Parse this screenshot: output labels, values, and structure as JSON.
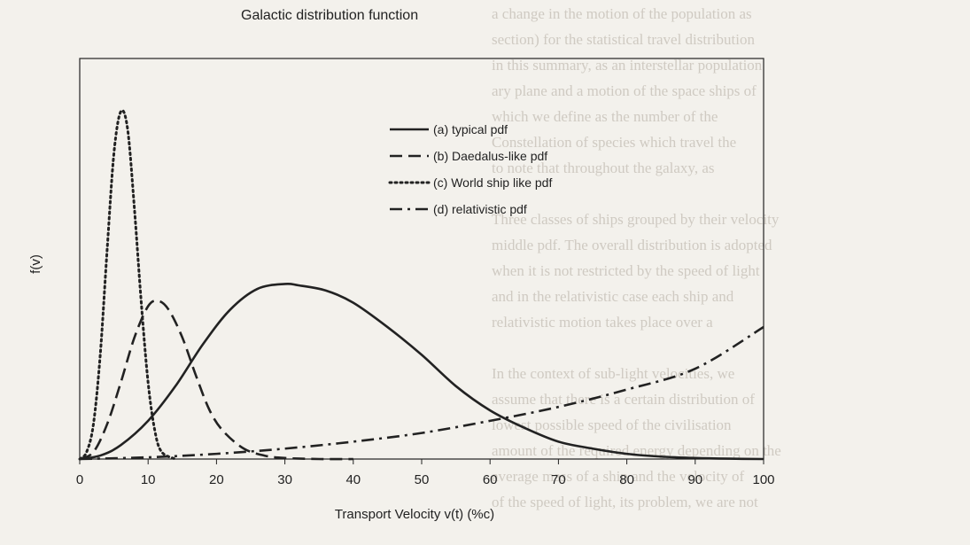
{
  "chart_data": {
    "type": "line",
    "title": "Galactic distribution function",
    "xlabel": "Transport Velocity v(t) (%c)",
    "ylabel": "f(v)",
    "xlim": [
      0,
      100
    ],
    "ylim": [
      0,
      1.0
    ],
    "x_ticks": [
      "0",
      "10",
      "20",
      "30",
      "40",
      "50",
      "60",
      "70",
      "80",
      "90",
      "100"
    ],
    "grid": false,
    "legend_position": "top-center",
    "series": [
      {
        "name": "(a) typical pdf",
        "style": "solid",
        "x": [
          0,
          3,
          6,
          10,
          14,
          18,
          22,
          26,
          30,
          32,
          36,
          40,
          45,
          50,
          55,
          60,
          65,
          70,
          75,
          80,
          85,
          90,
          95,
          100
        ],
        "y": [
          0,
          0.01,
          0.04,
          0.11,
          0.21,
          0.33,
          0.43,
          0.49,
          0.504,
          0.5,
          0.485,
          0.45,
          0.38,
          0.3,
          0.21,
          0.14,
          0.09,
          0.05,
          0.03,
          0.015,
          0.007,
          0.003,
          0.001,
          0
        ]
      },
      {
        "name": "(b) Daedalus-like pdf",
        "style": "dashed",
        "x": [
          0,
          2,
          4,
          6,
          8,
          10,
          11.5,
          13,
          15,
          17,
          19,
          21,
          24,
          27,
          30,
          35,
          40
        ],
        "y": [
          0,
          0.02,
          0.1,
          0.22,
          0.35,
          0.44,
          0.455,
          0.43,
          0.35,
          0.24,
          0.14,
          0.08,
          0.03,
          0.01,
          0.003,
          0,
          0
        ]
      },
      {
        "name": "(c) World ship like pdf",
        "style": "dotted",
        "x": [
          0,
          1,
          2,
          3,
          4,
          5,
          6,
          7,
          8,
          9,
          10,
          11,
          12,
          14
        ],
        "y": [
          0,
          0.02,
          0.1,
          0.3,
          0.6,
          0.88,
          1.0,
          0.95,
          0.72,
          0.45,
          0.22,
          0.08,
          0.02,
          0
        ]
      },
      {
        "name": "(d) relativistic pdf",
        "style": "dash-dot",
        "x": [
          0,
          10,
          20,
          30,
          40,
          50,
          60,
          70,
          80,
          90,
          100
        ],
        "y": [
          0,
          0.005,
          0.015,
          0.03,
          0.05,
          0.075,
          0.11,
          0.15,
          0.2,
          0.26,
          0.38
        ]
      }
    ]
  },
  "colors": {
    "line": "#222222",
    "background": "#f3f1ec"
  },
  "background_text": [
    "a change in the motion of the population as",
    "section) for the statistical travel distribution",
    "in this summary, as an interstellar population",
    "ary plane and a motion of the space ships of",
    "which we define as the number of the",
    "Constellation of species which travel the",
    "to note that throughout the galaxy, as",
    "",
    "Three classes of ships grouped by their velocity",
    "middle pdf. The overall distribution is adopted",
    "when it is not restricted by the speed of light",
    "and in the relativistic case each ship and",
    "relativistic motion takes place over a",
    "",
    "In the context of sub-light velocities, we",
    "assume that there is a certain distribution of",
    "lowest possible speed of the civilisation",
    "amount of the required energy depending on the",
    "average mass of a ship and the velocity of",
    "of the speed of light, its problem, we are not"
  ]
}
